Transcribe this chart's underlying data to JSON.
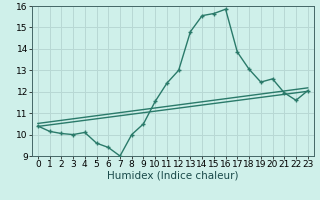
{
  "bg_color": "#cff0ea",
  "grid_color": "#b8d8d4",
  "line_color": "#2a7a6a",
  "xlabel": "Humidex (Indice chaleur)",
  "xlim": [
    -0.5,
    23.5
  ],
  "ylim": [
    9,
    16
  ],
  "xticks": [
    0,
    1,
    2,
    3,
    4,
    5,
    6,
    7,
    8,
    9,
    10,
    11,
    12,
    13,
    14,
    15,
    16,
    17,
    18,
    19,
    20,
    21,
    22,
    23
  ],
  "yticks": [
    9,
    10,
    11,
    12,
    13,
    14,
    15,
    16
  ],
  "main_x": [
    0,
    1,
    2,
    3,
    4,
    5,
    6,
    7,
    8,
    9,
    10,
    11,
    12,
    13,
    14,
    15,
    16,
    17,
    18,
    19,
    20,
    21,
    22,
    23
  ],
  "main_y": [
    10.4,
    10.15,
    10.05,
    10.0,
    10.1,
    9.6,
    9.4,
    9.0,
    10.0,
    10.5,
    11.55,
    12.4,
    13.0,
    14.8,
    15.55,
    15.65,
    15.85,
    13.85,
    13.05,
    12.45,
    12.6,
    11.95,
    11.6,
    12.05
  ],
  "line1_x": [
    0,
    23
  ],
  "line1_y": [
    10.38,
    12.02
  ],
  "line2_x": [
    0,
    23
  ],
  "line2_y": [
    10.52,
    12.18
  ],
  "marker_size": 3.5,
  "linewidth": 1.0,
  "tick_fontsize": 6.5,
  "xlabel_fontsize": 7.5
}
